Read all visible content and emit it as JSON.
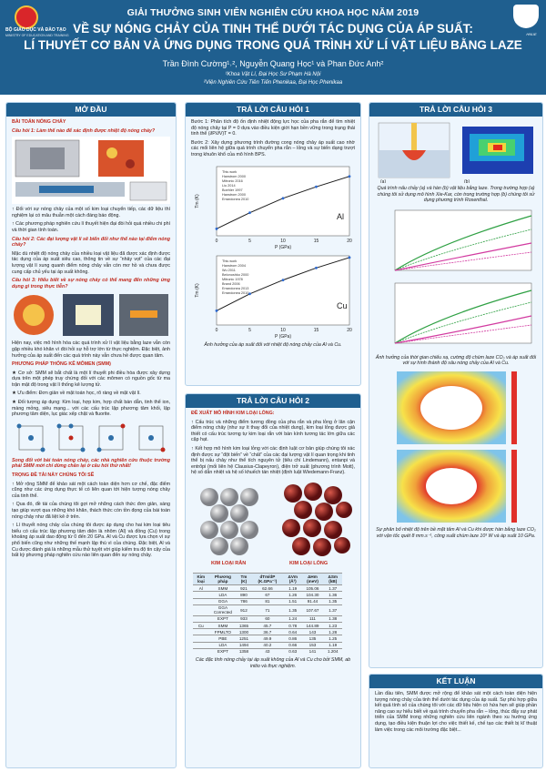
{
  "header": {
    "logo_left_caption": "BỘ GIÁO DỤC VÀ ĐÀO TẠO",
    "logo_left_sub": "MINISTRY OF EDUCATION AND TRAINING",
    "logo_right_caption": "HNUE",
    "award": "GIẢI THƯỞNG SINH VIÊN NGHIÊN CỨU KHOA HỌC NĂM 2019",
    "title_line1": "VỀ SỰ NÓNG CHẢY CỦA TINH THỂ DƯỚI TÁC DỤNG CỦA ÁP SUẤT:",
    "title_line2": "LÍ THUYẾT CƠ BẢN VÀ ỨNG DỤNG TRONG QUÁ TRÌNH XỬ LÍ VẬT LIỆU BẰNG LAZE",
    "authors": "Trần Đình Cường¹˒², Nguyễn Quang Học¹ và Phan Đức Anh²",
    "affiliation1": "¹Khoa Vật Lí, Đại Học Sư Phạm Hà Nội",
    "affiliation2": "²Viện Nghiên Cứu Tiên Tiến Phenikaa, Đại Học Phenikaa"
  },
  "col1": {
    "heading": "MỞ ĐẦU",
    "topic": "BÀI TOÁN NÓNG CHẢY",
    "q1": "Câu hỏi 1: Làm thế nào để xác định được nhiệt độ nóng chảy?",
    "p1": "↑ Đối với sự nóng chảy của một số kim loại chuyển tiếp, các dữ liệu thí nghiệm lại có mâu thuẫn một cách đáng báo động.",
    "p2": "↑ Các phương pháp nghiên cứu lí thuyết hiện đại đòi hỏi quá nhiều chi phí và thời gian tính toán.",
    "q2": "Câu hỏi 2: Các đại lượng vật lí sẽ biến đổi như thế nào tại điểm nóng chảy?",
    "p3": "Mặc dù nhiệt độ nóng chảy của nhiều loại vật liệu đã được xác định được tác dụng của áp suất siêu cao, thông tin về sự “nhảy vọt” của các đại lượng vật lí xung quanh điểm nóng chảy vẫn còn mơ hồ và chưa được cung cấp chủ yếu tại áp suất không.",
    "q3": "Câu hỏi 3: Hiểu biết về sự nóng chảy có thể mang đến những ứng dụng gì trong thực tiễn?",
    "p4": "Hiện nay, việc mô hình hóa các quá trình xử lí vật liệu bằng laze vẫn còn gặp nhiều khó khăn vì đòi hỏi sự hỗ trợ lớn từ thực nghiệm. Đặc biệt, ảnh hưởng của áp suất đến các quá trình này vẫn chưa hề được quan tâm.",
    "topic2": "PHƯƠNG PHÁP THỐNG KÊ MÔMEN (SMM)",
    "p5": "★ Cơ sở: SMM sẽ bắt chất là một lí thuyết phi điều hòa được xây dựng dựa trên một phép truy chứng đối với các mômen có nguồn gốc từ ma trận mật độ trong vật lí thống kê lượng tử.",
    "p6": "★ Ưu điểm: Đơn giản về mặt toán học, rõ ràng về mặt vật lí.",
    "p7": "★ Đối tượng áp dụng: Kim loại, hợp kim, hợp chất bán dẫn, tinh thể ion, màng mỏng, siêu mạng... với các cấu trúc lập phương tâm khối, lập phương tâm diện, lục giác xếp chặt và fluorite.",
    "q4": "Song đối với bài toán nóng chảy, các nhà nghiên cứu thuộc trường phái SMM mới chỉ dừng chân lại ở câu hỏi thứ nhất!",
    "topic3": "TRỌNG ĐỀ TÀI NÀY CHÚNG TÔI SẼ",
    "p8": "↑ Mở rộng SMM để khảo sát một cách toàn diện hơn cơ chế, đặc điểm cũng như các ứng dụng thực tế có liên quan tới hiện tượng nóng chảy của tinh thể.",
    "p9": "↑ Qua đó, đề tài của chúng tôi gợi mở những cách thức đơn giản, sáng tạo giúp vượt qua những khó khăn, thách thức còn tồn đọng của bài toán nóng chảy như đã liệt kê ở trên.",
    "p10": "↑ Lí thuyết nóng chảy của chúng tôi được áp dụng cho hai kim loại tiêu biểu có cấu trúc lập phương tâm diện là nhôm (Al) và đồng (Cu) trong khoảng áp suất dao động từ 0 đến 20 GPa. Al và Cu được lựa chọn vì sự phổ biến cũng như những thế mạnh lập thù vì của chúng. Đặc biệt, Al và Cu được đánh giá là những mẫu thử tuyệt vời giúp kiểm tra độ tin cậy của bất kỳ phương pháp nghiên cứu nào liên quan đến sự nóng chảy."
  },
  "col2": {
    "heading1": "TRẢ LỜI CÂU HỎI 1",
    "step1": "Bước 1: Phân tích độ ổn định nhiệt động lực học của pha rắn để tìm nhiệt độ nóng chảy tại P = 0 dựa vào điều kiện giới hạn bền vững trong trạng thái tinh thể (∂P/∂V)T = 0.",
    "step2": "Bước 2: Xây dựng phương trình đường cong nóng chảy áp suất cao nhờ các mối liên hệ giữa quá trình chuyển pha rắn – lỏng và sự biến dạng trượt trong khuôn khổ của mô hình BPS.",
    "fig1_caption": "Ảnh hưởng của áp suất đối với nhiệt độ nóng chảy của Al và Cu.",
    "heading2": "TRẢ LỜI CÂU HỎI 2",
    "proposal": "ĐỀ XUẤT MÔ HÌNH KIM LOẠI LỎNG:",
    "q2p1": "↑ Cấu trúc và những điểm tương đồng của pha rắn và pha lỏng ở lân cận điểm nóng chảy (như sự ít thay đổi của nhiệt dung), kim loại lỏng được giả thiết có cấu trúc tương tự kim loại rắn với bán kính tương tác lớn giữa các cặp hạt.",
    "q2p2": "↑ Kết hợp mô hình kim loại lỏng với các định luật cơ bản giúp chúng tôi xác định được sự “đột biến” về “chất” của các đại lượng vật lí quan trọng khi tinh thể bị nấu chảy như thể tích nguyên tử (tiêu chí Lindemann), entanpi và entrôpi (mối liên hệ Clausius-Clapeyron), điện trở suất (phương trình Mott), hệ số dẫn nhiệt và hệ số khuếch tán nhiệt (định luật Wiedemann-Franz).",
    "label_solid": "KIM LOẠI RẮN",
    "label_liquid": "KIM LOẠI LỎNG",
    "table_headers": [
      "Kim loại",
      "Phương pháp",
      "Tm (K)",
      "dTm/dP (K.GPa⁻¹)",
      "ΔVm (Å³)",
      "ΔHm (meV)",
      "ΔSm (kB)"
    ],
    "table_rows": [
      [
        "Al",
        "SMM",
        "921",
        "62.66",
        "1.19",
        "105.06",
        "1.37"
      ],
      [
        "",
        "LDA",
        "890",
        "67",
        "1.26",
        "104.30",
        "1.36"
      ],
      [
        "",
        "GGA",
        "786",
        "81",
        "1.51",
        "91.44",
        "1.35"
      ],
      [
        "",
        "GGA Corrected",
        "912",
        "71",
        "1.35",
        "107.67",
        "1.37"
      ],
      [
        "",
        "EXPT",
        "933",
        "60",
        "1.24",
        "111",
        "1.38"
      ],
      [
        "Cu",
        "SMM",
        "1365",
        "45.7",
        "0.78",
        "144.89",
        "1.23"
      ],
      [
        "",
        "FPMLTO",
        "1300",
        "36.7",
        "0.64",
        "143",
        "1.28"
      ],
      [
        "",
        "PBE",
        "1251",
        "49.9",
        "0.86",
        "135",
        "1.25"
      ],
      [
        "",
        "LDA",
        "1494",
        "40.2",
        "0.66",
        "153",
        "1.19"
      ],
      [
        "",
        "EXPT",
        "1358",
        "43",
        "0.63",
        "141",
        "1.204"
      ]
    ],
    "table_caption": "Các đặc tính nóng chảy tại áp suất không của Al và Cu cho bởi SMM, ab initio và thực nghiệm."
  },
  "col3": {
    "heading3": "TRẢ LỜI CÂU HỎI 3",
    "fig_ab_caption": "Quá trình nấu chảy (a) và hàn (b) vật liệu bằng laze. Trong trường hợp (a) chúng tôi sử dụng mô hình Xie-Kar, còn trong trường hợp (b) chúng tôi sử dụng phương trình Rosenthal.",
    "fig_time_caption": "Ảnh hưởng của thời gian chiếu xạ, cường độ chùm laze CO₂ và áp suất đối với sự hình thành độ sâu nóng chảy của Al và Cu.",
    "map_caption": "Sự phân bố nhiệt độ trên bề mặt tấm Al và Cu khi được hàn bằng laze CO₂ với vận tốc quét 8 mm.s⁻¹, công suất chùm laze 10³ W và áp suất 10 GPa.",
    "heading4": "KẾT LUẬN",
    "conclusion": "Lần đầu tiên, SMM được mở rộng để khảo sát một cách toàn diện hiện tượng nóng chảy của tinh thể dưới tác dụng của áp suất. Sự phù hợp giữa kết quả tính số của chúng tôi với các dữ liệu hiện có hứa hẹn sẽ giúp phần nâng cao sự hiểu biết về quá trình chuyển pha rắn – lỏng, thúc đẩy sự phát triển của SMM trong những nghiên cứu liên ngành theo xu hướng ứng dụng, tạo điều kiện thuận lợi cho việc thiết kế, chế tạo các thiết bị kĩ thuật làm việc trong các môi trường đặc biệt..."
  },
  "chart_data": [
    {
      "type": "line",
      "panel": "Al",
      "xlabel": "P (GPa)",
      "ylabel": "Tm (K)",
      "xlim": [
        0,
        20
      ],
      "ylim": [
        800,
        2000
      ],
      "legend": [
        "This work",
        "Hanstrom 2000",
        "Mitronic 2016",
        "Liu 2014",
        "Boehler 1997",
        "Hanstrom 2000",
        "Errandonea 2010"
      ],
      "series": [
        {
          "name": "This work",
          "x": [
            0,
            5,
            10,
            15,
            20
          ],
          "y": [
            921,
            1200,
            1450,
            1650,
            1830
          ]
        }
      ]
    },
    {
      "type": "line",
      "panel": "Cu",
      "xlabel": "P (GPa)",
      "ylabel": "Tm (K)",
      "xlim": [
        0,
        20
      ],
      "ylim": [
        1200,
        2000
      ],
      "legend": [
        "This work",
        "Hanstrom 2004",
        "Wu 2011",
        "Belonoshko 2000",
        "Mitronic 1978",
        "Brand 2006",
        "Errandonea 2013",
        "Errandonea 2010"
      ],
      "series": [
        {
          "name": "This work",
          "x": [
            0,
            5,
            10,
            15,
            20
          ],
          "y": [
            1365,
            1560,
            1720,
            1860,
            1980
          ]
        }
      ]
    }
  ]
}
